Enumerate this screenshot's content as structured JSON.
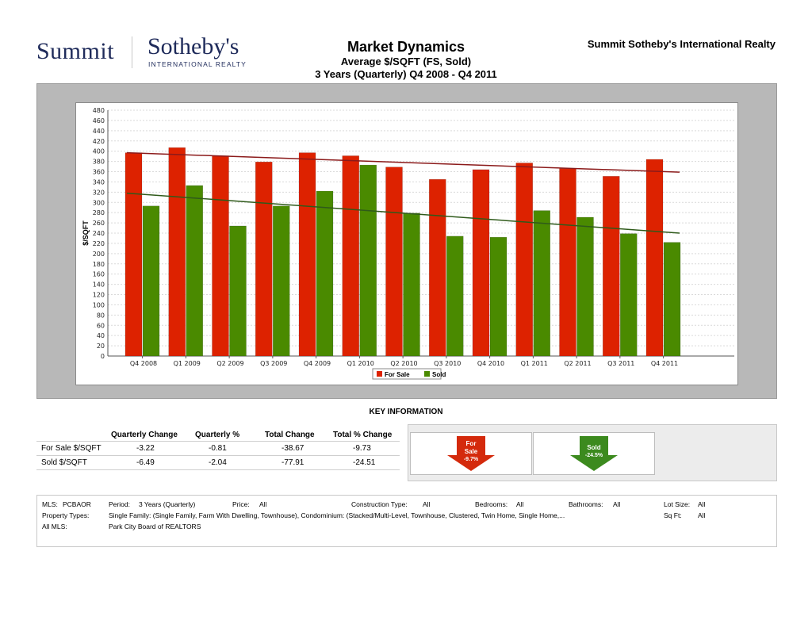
{
  "header": {
    "logo_left": "Summit",
    "logo_right": "Sotheby's",
    "logo_right_sub": "INTERNATIONAL REALTY",
    "title": "Market Dynamics",
    "subtitle1": "Average $/SQFT (FS, Sold)",
    "subtitle2": "3 Years (Quarterly) Q4 2008 - Q4 2011",
    "company": "Summit Sotheby's International Realty"
  },
  "chart_data": {
    "type": "bar",
    "ylabel": "$/SQFT",
    "ylim": [
      0,
      480
    ],
    "ytick_step": 20,
    "grid": true,
    "legend_position": "bottom-center",
    "categories": [
      "Q4 2008",
      "Q1 2009",
      "Q2 2009",
      "Q3 2009",
      "Q4 2009",
      "Q1 2010",
      "Q2 2010",
      "Q3 2010",
      "Q4 2010",
      "Q1 2011",
      "Q2 2011",
      "Q3 2011",
      "Q4 2011"
    ],
    "series": [
      {
        "name": "For Sale",
        "color": "#dd2200",
        "values": [
          397,
          407,
          391,
          379,
          397,
          391,
          369,
          345,
          364,
          377,
          366,
          351,
          384
        ]
      },
      {
        "name": "Sold",
        "color": "#4a8a00",
        "values": [
          293,
          333,
          254,
          293,
          322,
          373,
          279,
          234,
          232,
          284,
          271,
          239,
          222
        ]
      }
    ],
    "trendlines": [
      {
        "series": "For Sale",
        "color": "#8b1a1a",
        "start": 397,
        "end": 359
      },
      {
        "series": "Sold",
        "color": "#2f5a1a",
        "start": 318,
        "end": 240
      }
    ]
  },
  "key_info": {
    "title": "KEY INFORMATION",
    "columns": [
      "Quarterly Change",
      "Quarterly %",
      "Total Change",
      "Total % Change"
    ],
    "rows": [
      {
        "label": "For Sale $/SQFT",
        "values": [
          "-3.22",
          "-0.81",
          "-38.67",
          "-9.73"
        ]
      },
      {
        "label": "Sold $/SQFT",
        "values": [
          "-6.49",
          "-2.04",
          "-77.91",
          "-24.51"
        ]
      }
    ],
    "indicators": [
      {
        "label1": "For",
        "label2": "Sale",
        "pct": "-9.7%",
        "color": "#d42a0c"
      },
      {
        "label1": "Sold",
        "label2": "",
        "pct": "-24.5%",
        "color": "#3c8a1e"
      }
    ]
  },
  "footer": {
    "mls_label": "MLS:",
    "mls_value": "PCBAOR",
    "period_label": "Period:",
    "period_value": "3 Years (Quarterly)",
    "price_label": "Price:",
    "price_value": "All",
    "construction_label": "Construction Type:",
    "construction_value": "All",
    "bedrooms_label": "Bedrooms:",
    "bedrooms_value": "All",
    "bathrooms_label": "Bathrooms:",
    "bathrooms_value": "All",
    "lotsize_label": "Lot Size:",
    "lotsize_value": "All",
    "proptypes_label": "Property Types:",
    "proptypes_value": "Single Family: (Single Family, Farm With Dwelling, Townhouse), Condominium: (Stacked/Multi-Level, Townhouse, Clustered, Twin Home, Single Home,...",
    "sqft_label": "Sq Ft:",
    "sqft_value": "All",
    "allmls_label": "All MLS:",
    "allmls_value": "Park City Board of REALTORS"
  }
}
